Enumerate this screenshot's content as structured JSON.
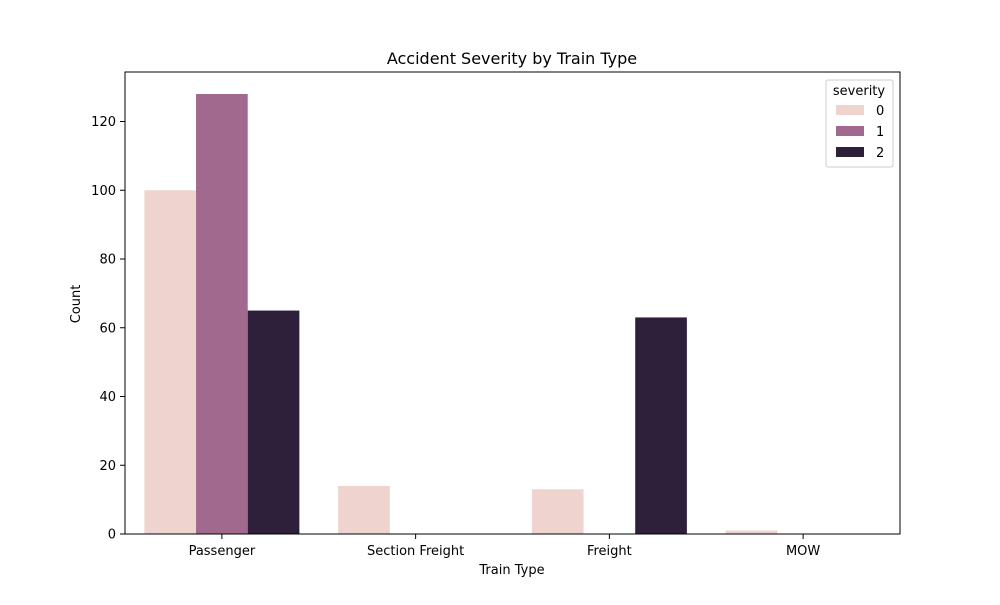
{
  "chart_data": {
    "type": "bar",
    "title": "Accident Severity by Train Type",
    "xlabel": "Train Type",
    "ylabel": "Count",
    "categories": [
      "Passenger",
      "Section Freight",
      "Freight",
      "MOW"
    ],
    "series": [
      {
        "name": "0",
        "color": "#eed3cf",
        "values": [
          100,
          14,
          13,
          1
        ]
      },
      {
        "name": "1",
        "color": "#a1698e",
        "values": [
          128,
          0,
          0,
          0
        ]
      },
      {
        "name": "2",
        "color": "#2e1f3b",
        "values": [
          65,
          0,
          63,
          0
        ]
      }
    ],
    "ylim": [
      0,
      134.4
    ],
    "yticks": [
      0,
      20,
      40,
      60,
      80,
      100,
      120
    ],
    "grid": false,
    "legend": {
      "title": "severity",
      "placement": "top-right"
    }
  }
}
